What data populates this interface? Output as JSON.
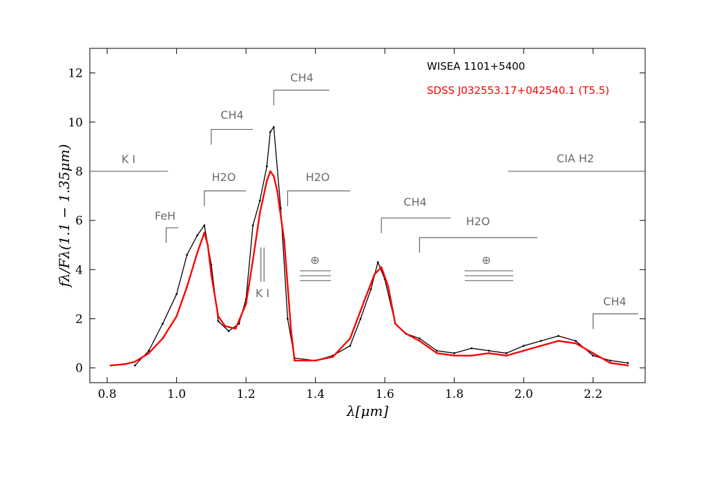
{
  "chart_data": {
    "type": "line",
    "xlabel": "λ[μm]",
    "ylabel": "fλ/Fλ(1.1 − 1.35μm)",
    "xlim": [
      0.75,
      2.35
    ],
    "ylim": [
      -0.6,
      13.0
    ],
    "x_ticks": [
      "0.8",
      "1.0",
      "1.2",
      "1.4",
      "1.6",
      "1.8",
      "2.0",
      "2.2"
    ],
    "y_ticks": [
      "0",
      "2",
      "4",
      "6",
      "8",
      "10",
      "12"
    ],
    "grid": false,
    "legend_position": "top-right",
    "series": [
      {
        "name": "WISEA 1101+5400",
        "color": "#000000",
        "x": [
          0.88,
          0.92,
          0.96,
          1.0,
          1.03,
          1.06,
          1.08,
          1.1,
          1.12,
          1.15,
          1.18,
          1.2,
          1.22,
          1.24,
          1.26,
          1.27,
          1.28,
          1.3,
          1.32,
          1.34,
          1.4,
          1.45,
          1.5,
          1.53,
          1.56,
          1.58,
          1.6,
          1.63,
          1.66,
          1.7,
          1.75,
          1.8,
          1.85,
          1.9,
          1.95,
          2.0,
          2.05,
          2.1,
          2.15,
          2.2,
          2.25,
          2.3
        ],
        "y": [
          0.1,
          0.7,
          1.8,
          3.0,
          4.6,
          5.4,
          5.8,
          4.2,
          1.9,
          1.5,
          1.8,
          2.8,
          5.8,
          6.8,
          8.2,
          9.6,
          9.8,
          6.5,
          2.0,
          0.4,
          0.3,
          0.5,
          0.9,
          2.0,
          3.2,
          4.3,
          3.6,
          1.8,
          1.4,
          1.2,
          0.7,
          0.6,
          0.8,
          0.7,
          0.6,
          0.9,
          1.1,
          1.3,
          1.1,
          0.5,
          0.3,
          0.2
        ]
      },
      {
        "name": "SDSS J032553.17+042540.1 (T5.5)",
        "color": "#ff0000",
        "x": [
          0.81,
          0.85,
          0.88,
          0.92,
          0.96,
          1.0,
          1.03,
          1.06,
          1.08,
          1.09,
          1.1,
          1.12,
          1.14,
          1.17,
          1.2,
          1.22,
          1.24,
          1.26,
          1.27,
          1.28,
          1.29,
          1.31,
          1.33,
          1.34,
          1.4,
          1.45,
          1.5,
          1.54,
          1.57,
          1.59,
          1.61,
          1.63,
          1.66,
          1.7,
          1.75,
          1.8,
          1.85,
          1.9,
          1.95,
          2.0,
          2.05,
          2.1,
          2.15,
          2.2,
          2.25,
          2.3
        ],
        "y": [
          0.1,
          0.15,
          0.25,
          0.6,
          1.2,
          2.1,
          3.3,
          4.7,
          5.5,
          5.0,
          3.8,
          2.1,
          1.7,
          1.6,
          2.6,
          4.4,
          6.3,
          7.6,
          8.0,
          7.8,
          7.2,
          5.2,
          1.5,
          0.3,
          0.3,
          0.45,
          1.2,
          2.7,
          3.8,
          4.1,
          3.3,
          1.8,
          1.4,
          1.1,
          0.6,
          0.5,
          0.5,
          0.6,
          0.5,
          0.7,
          0.9,
          1.1,
          1.0,
          0.6,
          0.2,
          0.1
        ]
      }
    ],
    "legend_entries": [
      {
        "text": "WISEA 1101+5400",
        "color": "#000000"
      },
      {
        "text": "SDSS J032553.17+042540.1 (T5.5)",
        "color": "#ff0000"
      }
    ],
    "annotations": [
      {
        "text": "K I",
        "x": 0.86,
        "y": 8.3
      },
      {
        "text": "FeH",
        "x": 0.965,
        "y": 6.2
      },
      {
        "text": "H2O",
        "x": 1.14,
        "y": 7.6
      },
      {
        "text": "CH4",
        "x": 1.165,
        "y": 10.2
      },
      {
        "text": "K I",
        "x": 1.25,
        "y": 3.0
      },
      {
        "text": "CH4",
        "x": 1.36,
        "y": 11.7
      },
      {
        "text": "H2O",
        "x": 1.41,
        "y": 7.6
      },
      {
        "text": "⊕",
        "x": 1.4,
        "y": 4.3
      },
      {
        "text": "CH4",
        "x": 1.69,
        "y": 6.7
      },
      {
        "text": "H2O",
        "x": 1.85,
        "y": 5.9
      },
      {
        "text": "⊕",
        "x": 1.89,
        "y": 4.3
      },
      {
        "text": "CIA H2",
        "x": 2.15,
        "y": 8.4
      },
      {
        "text": "CH4",
        "x": 2.27,
        "y": 2.6
      }
    ]
  }
}
